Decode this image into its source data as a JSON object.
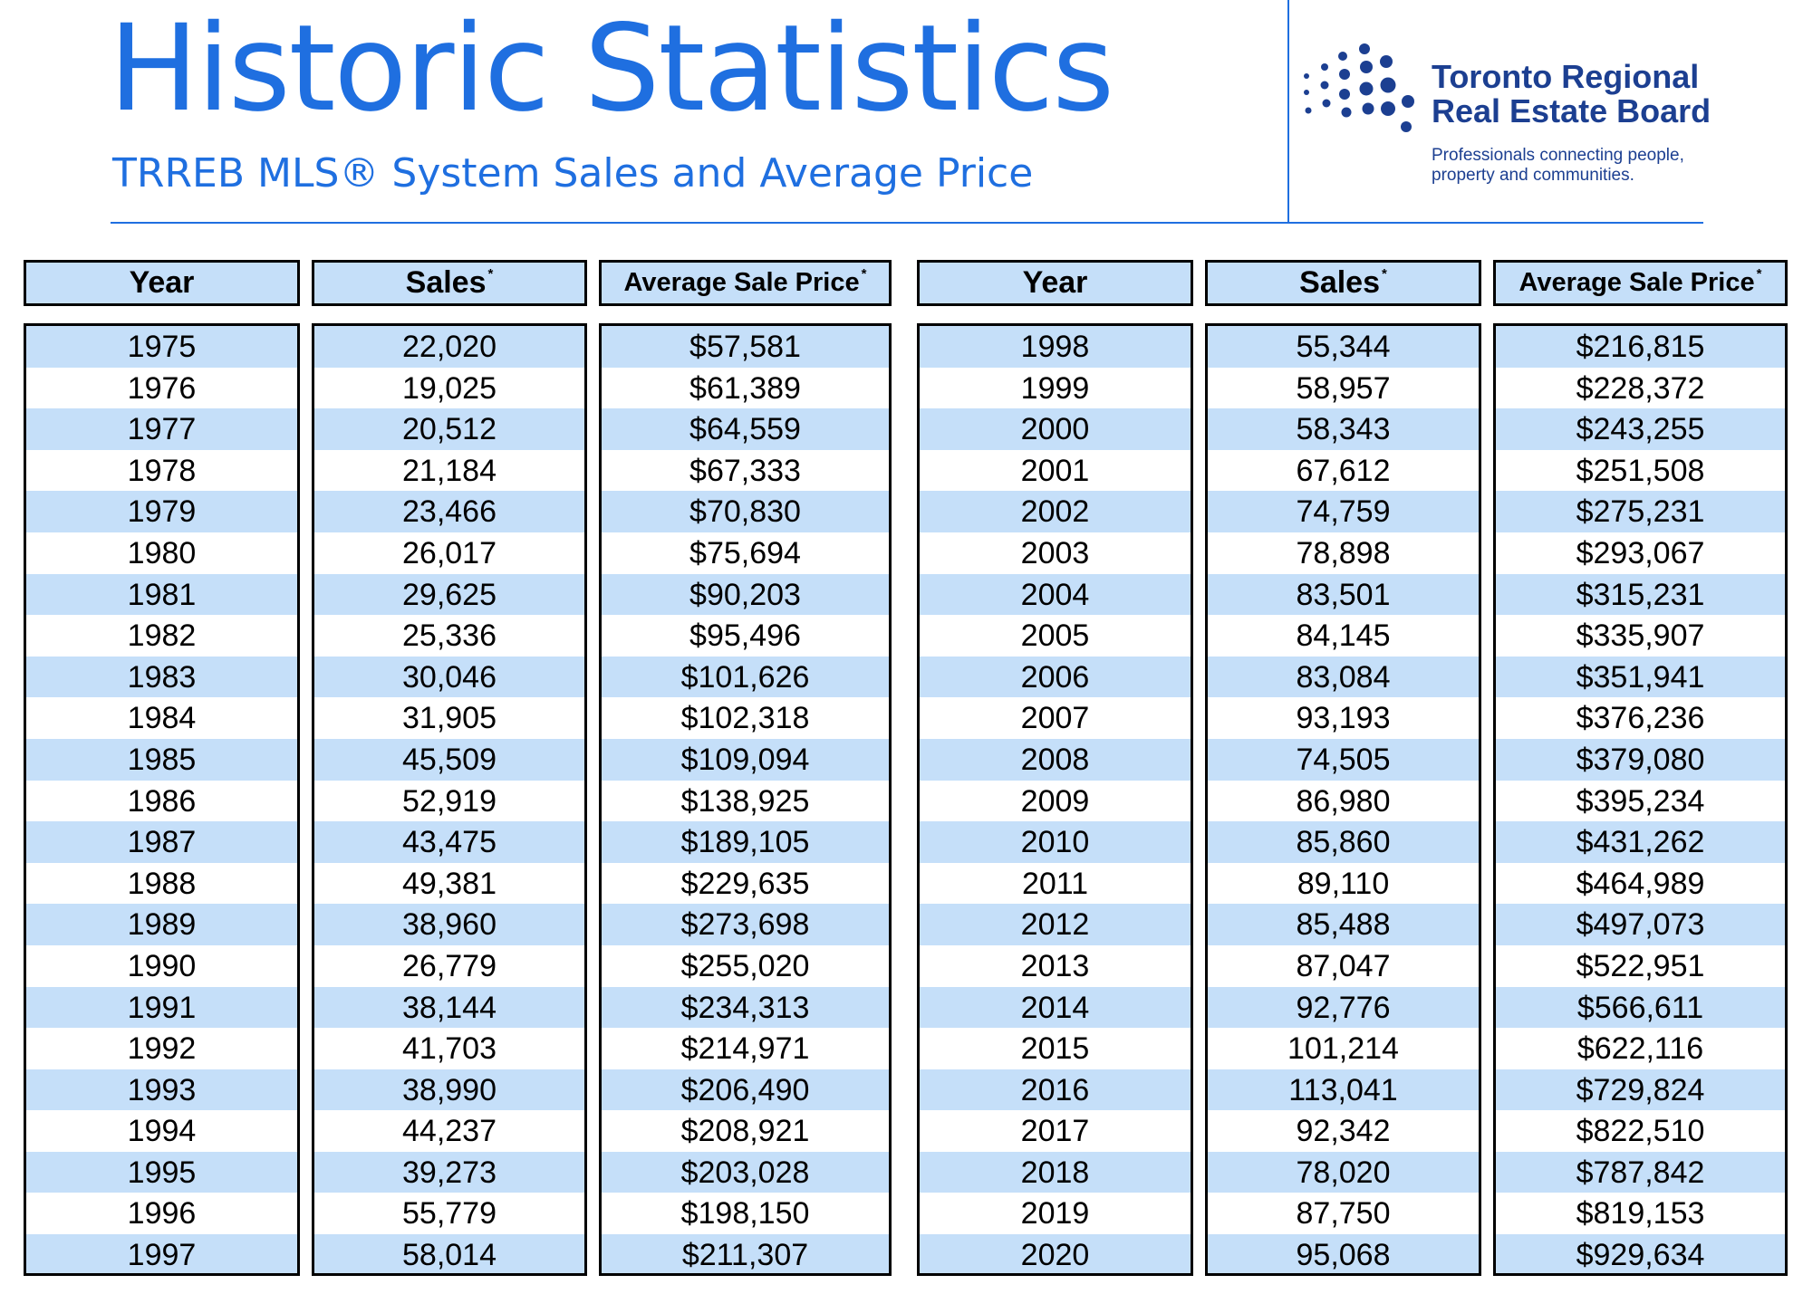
{
  "header": {
    "title": "Historic Statistics",
    "subtitle": "TRREB MLS® System Sales and Average Price"
  },
  "logo": {
    "name_line1": "Toronto Regional",
    "name_line2": "Real Estate Board",
    "tagline_line1": "Professionals connecting people,",
    "tagline_line2": "property and communities.",
    "brand_color": "#1c3f91"
  },
  "colors": {
    "accent": "#1f6fe0",
    "row_band": "#c5dff9",
    "border": "#000000"
  },
  "table": {
    "headers": {
      "year": "Year",
      "sales": "Sales",
      "price": "Average Sale Price",
      "footnote_mark": "*"
    },
    "left": {
      "years": [
        "1975",
        "1976",
        "1977",
        "1978",
        "1979",
        "1980",
        "1981",
        "1982",
        "1983",
        "1984",
        "1985",
        "1986",
        "1987",
        "1988",
        "1989",
        "1990",
        "1991",
        "1992",
        "1993",
        "1994",
        "1995",
        "1996",
        "1997"
      ],
      "sales": [
        "22,020",
        "19,025",
        "20,512",
        "21,184",
        "23,466",
        "26,017",
        "29,625",
        "25,336",
        "30,046",
        "31,905",
        "45,509",
        "52,919",
        "43,475",
        "49,381",
        "38,960",
        "26,779",
        "38,144",
        "41,703",
        "38,990",
        "44,237",
        "39,273",
        "55,779",
        "58,014"
      ],
      "prices": [
        "$57,581",
        "$61,389",
        "$64,559",
        "$67,333",
        "$70,830",
        "$75,694",
        "$90,203",
        "$95,496",
        "$101,626",
        "$102,318",
        "$109,094",
        "$138,925",
        "$189,105",
        "$229,635",
        "$273,698",
        "$255,020",
        "$234,313",
        "$214,971",
        "$206,490",
        "$208,921",
        "$203,028",
        "$198,150",
        "$211,307"
      ]
    },
    "right": {
      "years": [
        "1998",
        "1999",
        "2000",
        "2001",
        "2002",
        "2003",
        "2004",
        "2005",
        "2006",
        "2007",
        "2008",
        "2009",
        "2010",
        "2011",
        "2012",
        "2013",
        "2014",
        "2015",
        "2016",
        "2017",
        "2018",
        "2019",
        "2020"
      ],
      "sales": [
        "55,344",
        "58,957",
        "58,343",
        "67,612",
        "74,759",
        "78,898",
        "83,501",
        "84,145",
        "83,084",
        "93,193",
        "74,505",
        "86,980",
        "85,860",
        "89,110",
        "85,488",
        "87,047",
        "92,776",
        "101,214",
        "113,041",
        "92,342",
        "78,020",
        "87,750",
        "95,068"
      ],
      "prices": [
        "$216,815",
        "$228,372",
        "$243,255",
        "$251,508",
        "$275,231",
        "$293,067",
        "$315,231",
        "$335,907",
        "$351,941",
        "$376,236",
        "$379,080",
        "$395,234",
        "$431,262",
        "$464,989",
        "$497,073",
        "$522,951",
        "$566,611",
        "$622,116",
        "$729,824",
        "$822,510",
        "$787,842",
        "$819,153",
        "$929,634"
      ]
    }
  }
}
